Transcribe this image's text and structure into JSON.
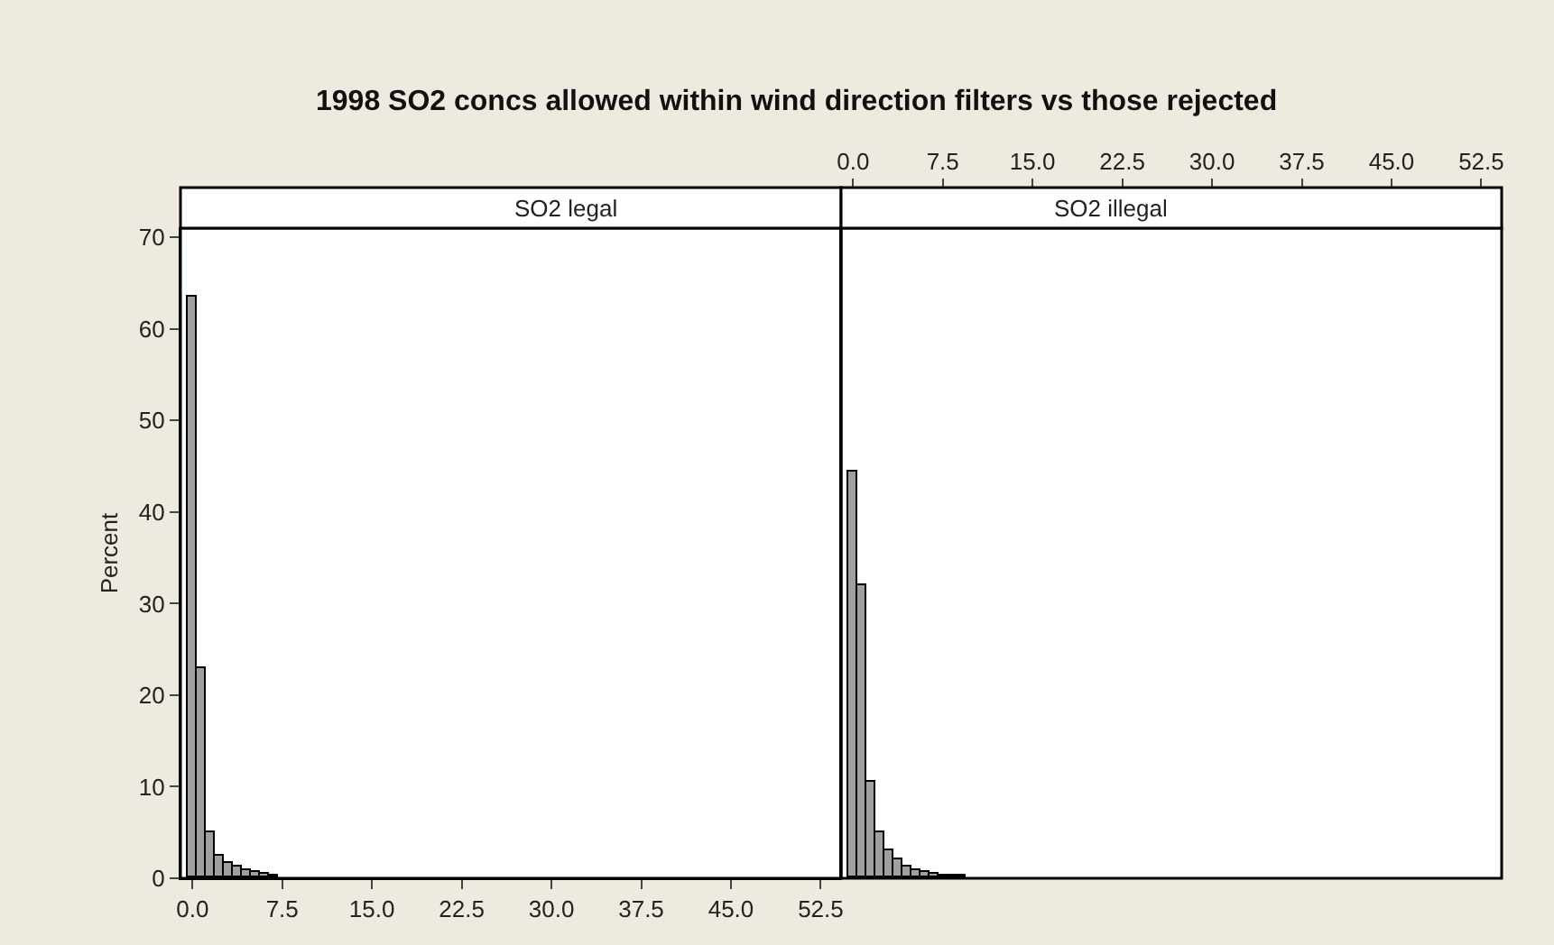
{
  "chart_data": [
    {
      "type": "histogram",
      "title": "1998 SO2 concs allowed within wind direction filters vs those rejected",
      "subtitle": "SO2 legal",
      "ylabel": "Percent",
      "color": "#a0a0a0",
      "bins": [
        -0.375,
        0.375,
        1.125,
        1.875,
        2.625,
        3.375,
        4.125,
        4.875,
        5.625,
        6.375,
        7.125,
        7.875,
        8.625,
        9.375,
        10.125,
        10.875,
        11.625,
        12.375,
        13.125,
        13.875,
        14.625,
        15.375,
        16.125,
        16.875,
        17.625,
        18.375,
        19.125,
        19.875,
        20.625,
        21.375,
        22.125,
        22.875,
        23.625,
        24.375,
        25.125,
        25.875,
        26.625,
        27.375,
        28.125,
        28.875,
        29.625,
        30.375,
        31.125,
        31.875,
        32.625,
        33.375,
        34.125,
        34.875,
        35.625,
        36.375,
        37.125,
        37.875,
        38.625,
        39.375,
        40.125,
        40.875,
        41.625,
        42.375,
        43.125,
        43.875,
        44.625,
        45.375,
        46.125,
        46.875,
        47.625,
        48.375,
        49.125,
        49.875,
        50.625,
        51.375,
        52.125,
        52.875,
        53.625
      ],
      "values": [
        63.5,
        23,
        5,
        2.5,
        1.7,
        1.2,
        0.9,
        0.6,
        0.4,
        0.3,
        0,
        0,
        0,
        0,
        0,
        0,
        0,
        0,
        0,
        0,
        0,
        0,
        0,
        0,
        0,
        0,
        0,
        0,
        0,
        0,
        0,
        0,
        0,
        0,
        0,
        0,
        0,
        0,
        0,
        0,
        0,
        0,
        0,
        0,
        0,
        0,
        0,
        0,
        0,
        0,
        0,
        0,
        0,
        0,
        0,
        0,
        0,
        0,
        0,
        0,
        0,
        0,
        0,
        0,
        0,
        0,
        0,
        0,
        0,
        0,
        0,
        0
      ],
      "xlim": [
        -1,
        54.2
      ],
      "xticks": [
        {
          "value": 0,
          "label": "0.0"
        },
        7.5,
        {
          "value": 15,
          "label": "15.0"
        },
        22.5,
        {
          "value": 30,
          "label": "30.0"
        },
        37.5,
        {
          "value": 45,
          "label": "45.0"
        },
        52.5
      ],
      "ylim": [
        0,
        71
      ],
      "yticks": [
        0,
        10,
        20,
        30,
        40,
        50,
        60,
        70
      ]
    },
    {
      "type": "histogram",
      "subtitle": "SO2 illegal",
      "color": "#a0a0a0",
      "tick_labels": "x",
      "bins": [
        -0.375,
        0.375,
        1.125,
        1.875,
        2.625,
        3.375,
        4.125,
        4.875,
        5.625,
        6.375,
        7.125,
        7.875,
        8.625,
        9.375,
        10.125,
        10.875,
        11.625,
        12.375,
        13.125,
        13.875,
        14.625,
        15.375,
        16.125,
        16.875,
        17.625,
        18.375,
        19.125,
        19.875,
        20.625,
        21.375,
        22.125,
        22.875,
        23.625,
        24.375,
        25.125,
        25.875,
        26.625,
        27.375,
        28.125,
        28.875,
        29.625,
        30.375,
        31.125,
        31.875,
        32.625,
        33.375,
        34.125,
        34.875,
        35.625,
        36.375,
        37.125,
        37.875,
        38.625,
        39.375,
        40.125,
        40.875,
        41.625,
        42.375,
        43.125,
        43.875,
        44.625,
        45.375,
        46.125,
        46.875,
        47.625,
        48.375,
        49.125,
        49.875,
        50.625,
        51.375,
        52.125,
        52.875,
        53.625
      ],
      "values": [
        44.5,
        32,
        10.5,
        5,
        3,
        2,
        1.3,
        0.8,
        0.6,
        0.4,
        0.3,
        0.2,
        0.2,
        0,
        0,
        0,
        0,
        0,
        0,
        0,
        0,
        0,
        0,
        0,
        0,
        0,
        0,
        0,
        0,
        0,
        0,
        0,
        0,
        0,
        0,
        0,
        0,
        0,
        0,
        0,
        0,
        0,
        0,
        0,
        0,
        0,
        0,
        0,
        0,
        0,
        0,
        0,
        0,
        0,
        0,
        0,
        0,
        0,
        0,
        0,
        0,
        0,
        0,
        0,
        0,
        0,
        0,
        0,
        0,
        0,
        0,
        0
      ],
      "xlim": [
        -1,
        54.2
      ],
      "xticks": [
        {
          "value": 0,
          "label": "0.0"
        },
        7.5,
        {
          "value": 15,
          "label": "15.0"
        },
        22.5,
        {
          "value": 30,
          "label": "30.0"
        },
        37.5,
        {
          "value": 45,
          "label": "45.0"
        },
        52.5
      ],
      "ylim": [
        0,
        71
      ],
      "yticks": [
        0,
        10,
        20,
        30,
        40,
        50,
        60,
        70
      ]
    }
  ]
}
